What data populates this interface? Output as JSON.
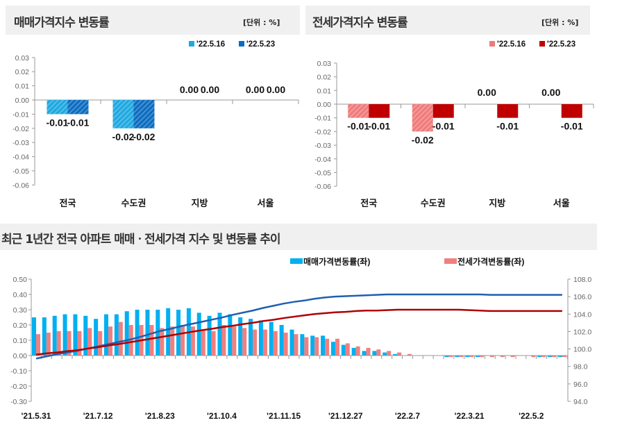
{
  "colors": {
    "sale_516": "#1ea8e0",
    "sale_523": "#0a6cc0",
    "jeonse_516": "#f07a7a",
    "jeonse_523": "#c00000",
    "sale_rate": "#00b0f0",
    "jeonse_rate": "#f08080",
    "sale_index": "#1f5fb0",
    "jeonse_index": "#b00000"
  },
  "chart_data": [
    {
      "type": "bar",
      "title": "매매가격지수 변동률",
      "unit": "[단위 : %]",
      "categories": [
        "전국",
        "수도권",
        "지방",
        "서울"
      ],
      "series": [
        {
          "name": "'22.5.16",
          "values": [
            -0.01,
            -0.02,
            0.0,
            0.0
          ]
        },
        {
          "name": "'22.5.23",
          "values": [
            -0.01,
            -0.02,
            0.0,
            0.0
          ]
        }
      ],
      "data_labels": [
        [
          "-0.01",
          "-0.02",
          "0.00",
          "0.00"
        ],
        [
          "-0.01",
          "-0.02",
          "0.00",
          "0.00"
        ]
      ],
      "ylim": [
        -0.06,
        0.03
      ],
      "yticks": [
        "0.03",
        "0.02",
        "0.01",
        "0.00",
        "-0.01",
        "-0.02",
        "-0.03",
        "-0.04",
        "-0.05",
        "-0.06"
      ],
      "legend": "top-right"
    },
    {
      "type": "bar",
      "title": "전세가격지수 변동률",
      "unit": "[단위 : %]",
      "categories": [
        "전국",
        "수도권",
        "지방",
        "서울"
      ],
      "series": [
        {
          "name": "'22.5.16",
          "values": [
            -0.01,
            -0.02,
            0.0,
            0.0
          ]
        },
        {
          "name": "'22.5.23",
          "values": [
            -0.01,
            -0.01,
            -0.01,
            -0.01
          ]
        }
      ],
      "data_labels": [
        [
          "-0.01",
          "-0.02",
          "0.00",
          "0.00"
        ],
        [
          "-0.01",
          "-0.01",
          "-0.01",
          "-0.01"
        ]
      ],
      "ylim": [
        -0.06,
        0.03
      ],
      "yticks": [
        "0.03",
        "0.02",
        "0.01",
        "0.00",
        "-0.01",
        "-0.02",
        "-0.03",
        "-0.04",
        "-0.05",
        "-0.06"
      ],
      "legend": "top-right"
    },
    {
      "type": "bar+line",
      "title": "최근 1년간 전국 아파트 매매ㆍ전세가격 지수 및 변동률 추이",
      "xticks": [
        "'21.5.31",
        "'21.7.12",
        "'21.8.23",
        "'21.10.4",
        "'21.11.15",
        "'21.12.27",
        "'22.2.7",
        "'22.3.21",
        "'22.5.2"
      ],
      "xtick_every_weeks": 6,
      "ylim_left": [
        -0.3,
        0.5
      ],
      "yticks_left": [
        "0.50",
        "0.40",
        "0.30",
        "0.20",
        "0.10",
        "0.00",
        "-0.10",
        "-0.20",
        "-0.30"
      ],
      "ylim_right": [
        94.0,
        108.0
      ],
      "yticks_right": [
        "108.0",
        "106.0",
        "104.0",
        "102.0",
        "100.0",
        "98.0",
        "96.0",
        "94.0"
      ],
      "legend": "top",
      "series": [
        {
          "name": "매매가격변동률(좌)",
          "type": "bar",
          "axis": "left",
          "values": [
            0.25,
            0.25,
            0.26,
            0.27,
            0.27,
            0.26,
            0.24,
            0.27,
            0.27,
            0.29,
            0.3,
            0.3,
            0.3,
            0.31,
            0.3,
            0.31,
            0.28,
            0.26,
            0.28,
            0.27,
            0.25,
            0.24,
            0.23,
            0.22,
            0.2,
            0.17,
            0.14,
            0.13,
            0.13,
            0.09,
            0.07,
            0.05,
            0.03,
            0.03,
            0.02,
            0.01,
            0.0,
            0.0,
            0.0,
            0.0,
            -0.01,
            -0.01,
            -0.01,
            -0.01,
            0.0,
            0.0,
            0.0,
            0.0,
            0.0,
            -0.01,
            -0.01,
            -0.01
          ]
        },
        {
          "name": "전세가격변동률(좌)",
          "type": "bar",
          "axis": "left",
          "values": [
            0.14,
            0.15,
            0.16,
            0.16,
            0.16,
            0.18,
            0.16,
            0.19,
            0.22,
            0.2,
            0.2,
            0.2,
            0.18,
            0.19,
            0.2,
            0.19,
            0.17,
            0.16,
            0.2,
            0.19,
            0.18,
            0.17,
            0.17,
            0.16,
            0.15,
            0.14,
            0.12,
            0.12,
            0.11,
            0.11,
            0.08,
            0.06,
            0.05,
            0.04,
            0.03,
            0.02,
            0.01,
            0.0,
            0.0,
            0.0,
            -0.01,
            -0.01,
            -0.01,
            -0.01,
            -0.01,
            -0.01,
            -0.01,
            0.0,
            -0.01,
            -0.01,
            -0.01,
            -0.01
          ]
        },
        {
          "type": "line",
          "axis": "right",
          "color": "#1f5fb0",
          "values": [
            98.9,
            99.15,
            99.4,
            99.6,
            99.8,
            100.05,
            100.3,
            100.55,
            100.8,
            101.05,
            101.35,
            101.7,
            102.05,
            102.3,
            102.6,
            102.85,
            103.1,
            103.35,
            103.6,
            103.9,
            104.15,
            104.4,
            104.7,
            104.95,
            105.2,
            105.4,
            105.55,
            105.75,
            105.9,
            106.0,
            106.05,
            106.1,
            106.15,
            106.2,
            106.25,
            106.25,
            106.25,
            106.25,
            106.25,
            106.25,
            106.25,
            106.25,
            106.25,
            106.25,
            106.2,
            106.2,
            106.2,
            106.2,
            106.2,
            106.2,
            106.2,
            106.2
          ]
        },
        {
          "type": "line",
          "axis": "right",
          "color": "#b00000",
          "values": [
            99.35,
            99.5,
            99.6,
            99.75,
            99.86,
            100.05,
            100.2,
            100.4,
            100.56,
            100.75,
            100.95,
            101.15,
            101.35,
            101.55,
            101.75,
            101.95,
            102.14,
            102.3,
            102.5,
            102.65,
            102.84,
            103.0,
            103.2,
            103.35,
            103.54,
            103.7,
            103.85,
            104.0,
            104.1,
            104.2,
            104.25,
            104.35,
            104.4,
            104.4,
            104.45,
            104.5,
            104.5,
            104.5,
            104.5,
            104.5,
            104.5,
            104.5,
            104.45,
            104.4,
            104.35,
            104.35,
            104.35,
            104.35,
            104.35,
            104.35,
            104.35,
            104.35
          ]
        }
      ]
    }
  ]
}
